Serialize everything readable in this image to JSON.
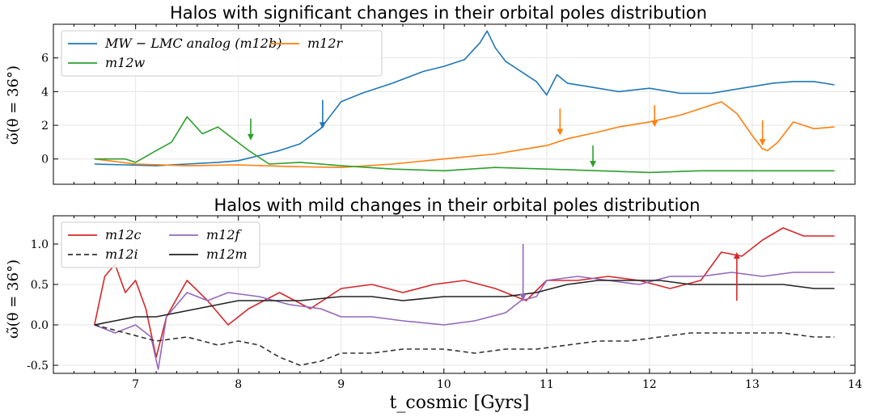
{
  "chart_data": [
    {
      "type": "line",
      "title": "Halos with significant changes in their orbital poles distribution",
      "ylabel": "ω̃(θ = 36°)",
      "xlim": [
        6.2,
        14.0
      ],
      "ylim": [
        -1.5,
        8.0
      ],
      "yticks": [
        0,
        2,
        4,
        6
      ],
      "legend": "top-left",
      "grid": true,
      "series": [
        {
          "name": "MW − LMC analog (m12b)",
          "color": "#1f77b4",
          "dash": "",
          "x": [
            6.6,
            6.9,
            7.2,
            7.5,
            7.8,
            8.0,
            8.2,
            8.4,
            8.6,
            8.8,
            9.0,
            9.2,
            9.5,
            9.8,
            10.0,
            10.2,
            10.35,
            10.42,
            10.5,
            10.6,
            10.75,
            10.9,
            11.0,
            11.1,
            11.2,
            11.4,
            11.7,
            12.0,
            12.3,
            12.6,
            12.9,
            13.2,
            13.4,
            13.6,
            13.8
          ],
          "y": [
            -0.3,
            -0.35,
            -0.4,
            -0.3,
            -0.2,
            -0.1,
            0.2,
            0.5,
            0.9,
            1.8,
            3.4,
            3.9,
            4.5,
            5.2,
            5.5,
            5.9,
            6.9,
            7.6,
            6.6,
            5.8,
            5.2,
            4.6,
            3.8,
            5.0,
            4.5,
            4.3,
            4.0,
            4.2,
            3.9,
            3.9,
            4.2,
            4.5,
            4.6,
            4.6,
            4.4
          ]
        },
        {
          "name": "m12r",
          "color": "#ff7f0e",
          "dash": "",
          "x": [
            6.6,
            7.0,
            7.5,
            8.0,
            8.5,
            9.0,
            9.5,
            10.0,
            10.5,
            10.8,
            11.0,
            11.2,
            11.5,
            11.7,
            12.0,
            12.3,
            12.5,
            12.7,
            12.85,
            13.0,
            13.1,
            13.15,
            13.25,
            13.4,
            13.6,
            13.8
          ],
          "y": [
            0.0,
            -0.3,
            -0.4,
            -0.35,
            -0.45,
            -0.5,
            -0.3,
            0.0,
            0.3,
            0.6,
            0.8,
            1.2,
            1.6,
            1.9,
            2.2,
            2.6,
            3.0,
            3.4,
            2.7,
            1.4,
            0.6,
            0.5,
            1.0,
            2.2,
            1.8,
            1.9
          ]
        },
        {
          "name": "m12w",
          "color": "#2ca02c",
          "dash": "",
          "x": [
            6.6,
            6.9,
            7.0,
            7.2,
            7.35,
            7.5,
            7.65,
            7.8,
            7.95,
            8.1,
            8.3,
            8.6,
            9.0,
            9.5,
            10.0,
            10.5,
            11.0,
            11.5,
            12.0,
            12.5,
            13.0,
            13.5,
            13.8
          ],
          "y": [
            0.0,
            0.0,
            -0.2,
            0.5,
            1.0,
            2.5,
            1.5,
            1.9,
            1.2,
            0.5,
            -0.3,
            -0.2,
            -0.4,
            -0.6,
            -0.7,
            -0.5,
            -0.6,
            -0.7,
            -0.8,
            -0.7,
            -0.7,
            -0.7,
            -0.7
          ]
        }
      ],
      "arrows": [
        {
          "color": "#2ca02c",
          "x": 8.12,
          "y_from": 2.4,
          "y_to": 1.1
        },
        {
          "color": "#1f77b4",
          "x": 8.82,
          "y_from": 3.5,
          "y_to": 1.8
        },
        {
          "color": "#ff7f0e",
          "x": 11.13,
          "y_from": 3.0,
          "y_to": 1.4
        },
        {
          "color": "#ff7f0e",
          "x": 12.05,
          "y_from": 3.2,
          "y_to": 1.9
        },
        {
          "color": "#2ca02c",
          "x": 11.45,
          "y_from": 0.8,
          "y_to": -0.5
        },
        {
          "color": "#ff7f0e",
          "x": 13.1,
          "y_from": 2.3,
          "y_to": 0.8
        }
      ]
    },
    {
      "type": "line",
      "title": "Halos with mild changes in their orbital poles distribution",
      "ylabel": "ω̃(θ = 36°)",
      "xlabel": "t_cosmic [Gyrs]",
      "xlim": [
        6.2,
        14.0
      ],
      "ylim": [
        -0.6,
        1.35
      ],
      "yticks": [
        -0.5,
        0.0,
        0.5,
        1.0
      ],
      "xticks": [
        7,
        8,
        9,
        10,
        11,
        12,
        13,
        14
      ],
      "legend": "top-left",
      "grid": true,
      "series": [
        {
          "name": "m12c",
          "color": "#d62728",
          "dash": "",
          "x": [
            6.6,
            6.7,
            6.8,
            6.9,
            7.0,
            7.1,
            7.2,
            7.3,
            7.5,
            7.7,
            7.9,
            8.1,
            8.4,
            8.7,
            9.0,
            9.3,
            9.6,
            9.9,
            10.2,
            10.5,
            10.8,
            11.0,
            11.3,
            11.6,
            11.9,
            12.2,
            12.5,
            12.7,
            12.9,
            13.1,
            13.3,
            13.5,
            13.8
          ],
          "y": [
            0.0,
            0.6,
            0.75,
            0.4,
            0.55,
            0.2,
            -0.4,
            0.1,
            0.55,
            0.3,
            0.0,
            0.2,
            0.4,
            0.2,
            0.45,
            0.5,
            0.4,
            0.5,
            0.55,
            0.45,
            0.3,
            0.55,
            0.55,
            0.6,
            0.55,
            0.45,
            0.55,
            0.9,
            0.85,
            1.05,
            1.2,
            1.1,
            1.1
          ]
        },
        {
          "name": "m12f",
          "color": "#9467bd",
          "dash": "",
          "x": [
            6.6,
            6.8,
            7.0,
            7.15,
            7.22,
            7.3,
            7.5,
            7.7,
            7.9,
            8.2,
            8.5,
            8.8,
            9.0,
            9.3,
            9.6,
            10.0,
            10.3,
            10.6,
            10.75,
            10.9,
            11.0,
            11.3,
            11.6,
            11.9,
            12.2,
            12.5,
            12.8,
            13.1,
            13.4,
            13.6,
            13.8
          ],
          "y": [
            0.0,
            -0.1,
            0.0,
            -0.15,
            -0.55,
            0.1,
            0.4,
            0.3,
            0.4,
            0.35,
            0.25,
            0.2,
            0.1,
            0.1,
            0.05,
            0.0,
            0.05,
            0.15,
            0.3,
            0.35,
            0.55,
            0.6,
            0.55,
            0.5,
            0.6,
            0.6,
            0.65,
            0.6,
            0.65,
            0.65,
            0.65
          ]
        },
        {
          "name": "m12i",
          "color": "#333333",
          "dash": "6 4",
          "x": [
            6.6,
            6.9,
            7.2,
            7.5,
            7.8,
            8.0,
            8.2,
            8.4,
            8.6,
            8.8,
            9.0,
            9.3,
            9.6,
            10.0,
            10.3,
            10.6,
            10.9,
            11.2,
            11.5,
            11.8,
            12.1,
            12.4,
            12.7,
            13.0,
            13.3,
            13.6,
            13.8
          ],
          "y": [
            0.0,
            -0.1,
            -0.2,
            -0.15,
            -0.25,
            -0.2,
            -0.25,
            -0.4,
            -0.5,
            -0.45,
            -0.35,
            -0.35,
            -0.3,
            -0.3,
            -0.35,
            -0.3,
            -0.3,
            -0.25,
            -0.2,
            -0.2,
            -0.15,
            -0.1,
            -0.1,
            -0.1,
            -0.1,
            -0.15,
            -0.15
          ]
        },
        {
          "name": "m12m",
          "color": "#222222",
          "dash": "",
          "x": [
            6.6,
            6.8,
            7.0,
            7.2,
            7.4,
            7.6,
            7.8,
            8.0,
            8.3,
            8.6,
            9.0,
            9.3,
            9.6,
            10.0,
            10.3,
            10.6,
            10.9,
            11.2,
            11.5,
            11.8,
            12.1,
            12.4,
            12.7,
            13.0,
            13.3,
            13.6,
            13.8
          ],
          "y": [
            0.0,
            0.05,
            0.1,
            0.1,
            0.15,
            0.2,
            0.25,
            0.3,
            0.3,
            0.3,
            0.35,
            0.35,
            0.3,
            0.35,
            0.35,
            0.35,
            0.4,
            0.5,
            0.55,
            0.55,
            0.55,
            0.5,
            0.5,
            0.5,
            0.5,
            0.45,
            0.45
          ]
        }
      ],
      "arrows": [
        {
          "color": "#9467bd",
          "x": 10.77,
          "y_from": 1.0,
          "y_to": 0.3
        },
        {
          "color": "#d62728",
          "x": 12.85,
          "y_from": 0.3,
          "y_to": 0.9
        }
      ]
    }
  ]
}
